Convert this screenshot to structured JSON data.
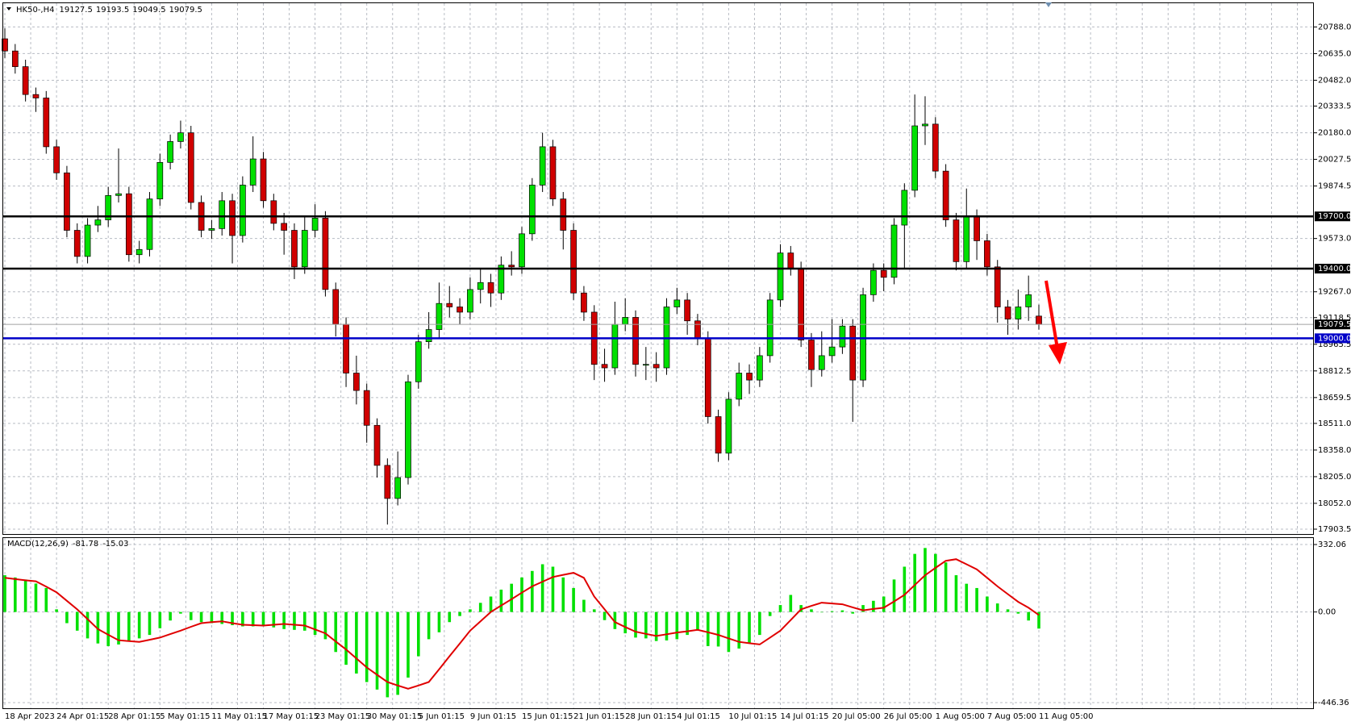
{
  "chart_data": [
    {
      "type": "candlestick",
      "title": "HK50-,H4",
      "categories": [
        "18 Apr 2023",
        null,
        null,
        null,
        null,
        "24 Apr 01:15",
        null,
        null,
        null,
        null,
        "28 Apr 01:15",
        null,
        null,
        null,
        null,
        "5 May 01:15",
        null,
        null,
        null,
        null,
        "11 May 01:15",
        null,
        null,
        null,
        null,
        "17 May 01:15",
        null,
        null,
        null,
        null,
        "23 May 01:15",
        null,
        null,
        null,
        null,
        "30 May 01:15",
        null,
        null,
        null,
        null,
        "5 Jun 01:15",
        null,
        null,
        null,
        null,
        "9 Jun 01:15",
        null,
        null,
        null,
        null,
        "15 Jun 01:15",
        null,
        null,
        null,
        null,
        "21 Jun 01:15",
        null,
        null,
        null,
        null,
        "28 Jun 01:15",
        null,
        null,
        null,
        null,
        "4 Jul 01:15",
        null,
        null,
        null,
        null,
        "10 Jul 01:15",
        null,
        null,
        null,
        null,
        "14 Jul 01:15",
        null,
        null,
        null,
        null,
        "20 Jul 05:00",
        null,
        null,
        null,
        null,
        "26 Jul 05:00",
        null,
        null,
        null,
        null,
        "1 Aug 05:00",
        null,
        null,
        null,
        null,
        "7 Aug 05:00",
        null,
        null,
        null,
        null,
        "11 Aug 05:00"
      ],
      "open": [
        20720,
        20650,
        20560,
        20400,
        20380,
        20100,
        19950,
        19620,
        19470,
        19650,
        19680,
        19820,
        19830,
        19480,
        19510,
        19800,
        20010,
        20130,
        20180,
        19780,
        19620,
        19630,
        19790,
        19590,
        19880,
        20030,
        19790,
        19660,
        19620,
        19410,
        19620,
        19690,
        19280,
        19080,
        18800,
        18700,
        18500,
        18270,
        18080,
        18200,
        18750,
        18980,
        19050,
        19200,
        19180,
        19150,
        19280,
        19320,
        19260,
        19420,
        19410,
        19600,
        19880,
        20100,
        19800,
        19620,
        19260,
        19150,
        18850,
        18830,
        19080,
        19120,
        18850,
        18850,
        18830,
        19180,
        19220,
        19100,
        19000,
        18550,
        18340,
        18650,
        18800,
        18760,
        18900,
        19220,
        19490,
        19400,
        18990,
        18820,
        18900,
        18950,
        19070,
        18760,
        19250,
        19390,
        19350,
        19650,
        19850,
        20220,
        20230,
        19960,
        19680,
        19440,
        19700,
        19560,
        19410,
        19180,
        19110,
        19180,
        19127.5
      ],
      "high": [
        20780,
        20690,
        20600,
        20440,
        20420,
        20140,
        19990,
        19660,
        19690,
        19760,
        19870,
        20090,
        19870,
        19560,
        19840,
        20060,
        20170,
        20250,
        20220,
        19820,
        19680,
        19840,
        19830,
        19930,
        20160,
        20070,
        19830,
        19720,
        19660,
        19700,
        19770,
        19730,
        19320,
        19120,
        18900,
        18740,
        18540,
        18310,
        18350,
        18790,
        19020,
        19150,
        19320,
        19300,
        19230,
        19350,
        19400,
        19370,
        19470,
        19500,
        19640,
        19920,
        20180,
        20140,
        19840,
        19660,
        19300,
        19190,
        18940,
        19210,
        19230,
        19160,
        18950,
        18920,
        19230,
        19290,
        19260,
        19140,
        19040,
        18590,
        18690,
        18860,
        18850,
        18950,
        19260,
        19540,
        19530,
        19440,
        19030,
        19040,
        19110,
        19110,
        19110,
        19290,
        19430,
        19430,
        19690,
        19890,
        20400,
        20390,
        20270,
        20000,
        19720,
        19860,
        19740,
        19600,
        19450,
        19220,
        19280,
        19360,
        19193.5
      ],
      "low": [
        20610,
        20520,
        20360,
        20300,
        20060,
        19910,
        19580,
        19430,
        19430,
        19610,
        19640,
        19780,
        19440,
        19430,
        19470,
        19760,
        19970,
        20090,
        19740,
        19580,
        19570,
        19590,
        19430,
        19550,
        19840,
        19750,
        19620,
        19480,
        19340,
        19370,
        19580,
        19240,
        19010,
        18720,
        18620,
        18400,
        18200,
        17930,
        18040,
        18160,
        18710,
        18940,
        19000,
        19120,
        19080,
        19110,
        19200,
        19180,
        19220,
        19360,
        19370,
        19560,
        19840,
        19760,
        19510,
        19220,
        19100,
        18760,
        18750,
        18790,
        19040,
        18780,
        18760,
        18750,
        18790,
        19140,
        19020,
        18960,
        18510,
        18290,
        18300,
        18610,
        18680,
        18720,
        18860,
        19180,
        19360,
        18950,
        18720,
        18780,
        18860,
        18910,
        18520,
        18720,
        19210,
        19270,
        19310,
        19400,
        19810,
        20110,
        19920,
        19640,
        19390,
        19400,
        19450,
        19360,
        19090,
        19020,
        19050,
        19100,
        19049.5
      ],
      "close": [
        20650,
        20560,
        20400,
        20380,
        20100,
        19950,
        19620,
        19470,
        19650,
        19680,
        19820,
        19830,
        19480,
        19510,
        19800,
        20010,
        20130,
        20180,
        19780,
        19620,
        19630,
        19790,
        19590,
        19880,
        20030,
        19790,
        19660,
        19620,
        19410,
        19620,
        19690,
        19280,
        19080,
        18800,
        18700,
        18500,
        18270,
        18080,
        18200,
        18750,
        18980,
        19050,
        19200,
        19180,
        19150,
        19280,
        19320,
        19260,
        19420,
        19410,
        19600,
        19880,
        20100,
        19800,
        19620,
        19260,
        19150,
        18850,
        18830,
        19080,
        19120,
        18850,
        18850,
        18830,
        19180,
        19220,
        19100,
        19000,
        18550,
        18340,
        18650,
        18800,
        18760,
        18900,
        19220,
        19490,
        19400,
        18990,
        18820,
        18900,
        18950,
        19070,
        18760,
        19250,
        19390,
        19350,
        19650,
        19850,
        20220,
        20230,
        19960,
        19680,
        19440,
        19700,
        19560,
        19410,
        19180,
        19110,
        19180,
        19250,
        19079.5
      ],
      "up_color": "#00e000",
      "down_color": "#d00000",
      "ylim": [
        17885,
        20915
      ],
      "yticks": [
        {
          "value": 20788,
          "label": "20788.0"
        },
        {
          "value": 20635,
          "label": "20635.0"
        },
        {
          "value": 20482,
          "label": "20482.0"
        },
        20333.5,
        {
          "value": 20180,
          "label": "20180.0"
        },
        20027.5,
        19874.5,
        {
          "value": 19573,
          "label": "19573.0"
        },
        {
          "value": 19267,
          "label": "19267.0"
        },
        19118.5,
        18965.5,
        18812.5,
        18659.5,
        {
          "value": 18511,
          "label": "18511.0"
        },
        {
          "value": 18358,
          "label": "18358.0"
        },
        {
          "value": 18205,
          "label": "18205.0"
        },
        {
          "value": 18052,
          "label": "18052.0"
        },
        17903.5
      ],
      "levels": [
        {
          "value": 19700,
          "label": "19700.0",
          "color": "#000000"
        },
        {
          "value": 19400,
          "label": "19400.0",
          "color": "#000000"
        },
        {
          "value": 19000,
          "label": "19000.0",
          "color": "#0000c8"
        }
      ],
      "grid": true
    },
    {
      "type": "macd",
      "title": "MACD(12,26,9)",
      "histogram": [
        181,
        170,
        160,
        140,
        118,
        13,
        -55,
        -92,
        -130,
        -155,
        -168,
        -160,
        -143,
        -130,
        -113,
        -80,
        -42,
        -8,
        -40,
        -50,
        -55,
        -59,
        -65,
        -71,
        -71,
        -71,
        -76,
        -84,
        -88,
        -92,
        -113,
        -134,
        -197,
        -260,
        -303,
        -345,
        -382,
        -420,
        -408,
        -323,
        -218,
        -134,
        -100,
        -50,
        -20,
        13,
        45,
        76,
        110,
        139,
        170,
        202,
        235,
        223,
        170,
        118,
        60,
        13,
        -40,
        -84,
        -105,
        -126,
        -130,
        -143,
        -140,
        -134,
        -113,
        -92,
        -168,
        -170,
        -197,
        -180,
        -155,
        -113,
        -20,
        34,
        84,
        34,
        13,
        0,
        4,
        8,
        -8,
        34,
        55,
        76,
        160,
        223,
        286,
        315,
        286,
        244,
        181,
        139,
        118,
        76,
        42,
        13,
        -8,
        -42,
        -81.78
      ],
      "signal": [
        168,
        162,
        156,
        151,
        125,
        97,
        55,
        13,
        -35,
        -84,
        -112,
        -139,
        -143,
        -147,
        -137,
        -126,
        -109,
        -92,
        -73,
        -55,
        -50,
        -46,
        -55,
        -63,
        -65,
        -67,
        -63,
        -59,
        -63,
        -67,
        -86,
        -105,
        -145,
        -185,
        -229,
        -273,
        -309,
        -345,
        -362,
        -378,
        -362,
        -345,
        -282,
        -218,
        -155,
        -92,
        -46,
        0,
        32,
        63,
        95,
        126,
        149,
        172,
        183,
        193,
        168,
        76,
        13,
        -50,
        -74,
        -97,
        -108,
        -118,
        -110,
        -101,
        -95,
        -88,
        -100,
        -113,
        -130,
        -147,
        -154,
        -160,
        -126,
        -92,
        -40,
        13,
        30,
        46,
        42,
        38,
        23,
        8,
        15,
        21,
        52,
        84,
        133,
        181,
        217,
        252,
        260,
        235,
        210,
        168,
        126,
        88,
        50,
        21,
        -15.03
      ],
      "histogram_color": "#00e000",
      "signal_color": "#e00000",
      "ylim": [
        -470,
        360
      ],
      "yticks": [
        332.06,
        {
          "value": 0,
          "label": "0.00"
        },
        -446.36
      ],
      "grid": true
    }
  ]
}
